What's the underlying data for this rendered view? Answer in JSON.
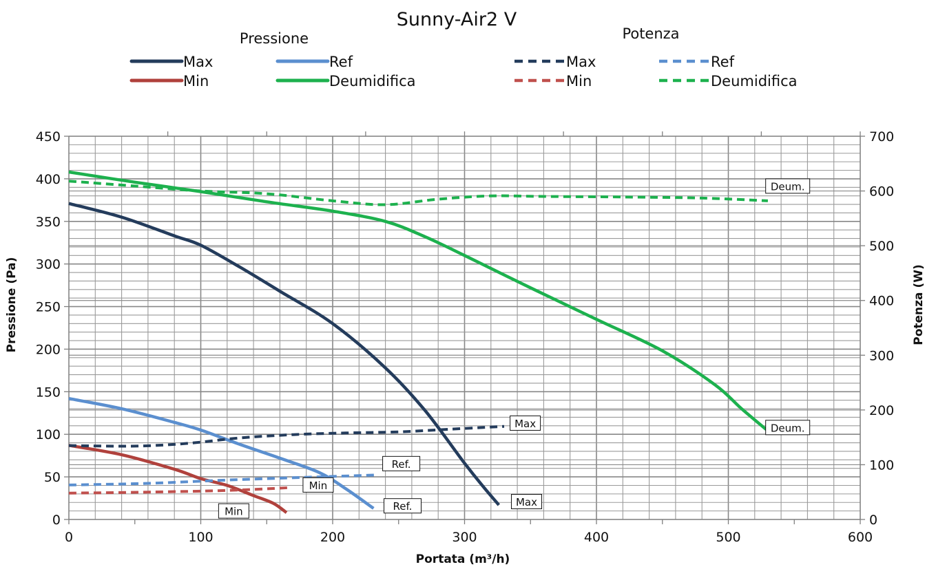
{
  "chart_data": {
    "type": "line",
    "title": "Sunny-Air2 V",
    "xlabel": "Portata (m³/h)",
    "ylabel": "Pressione (Pa)",
    "y2label": "Potenza (W)",
    "xlim": [
      0,
      600
    ],
    "ylim": [
      0,
      450
    ],
    "y2lim": [
      0,
      700
    ],
    "x_ticks": [
      "0",
      "100",
      "200",
      "300",
      "400",
      "500",
      "600"
    ],
    "y_ticks": [
      "0",
      "50",
      "100",
      "150",
      "200",
      "250",
      "300",
      "350",
      "400",
      "450"
    ],
    "y2_ticks": [
      "0",
      "100",
      "200",
      "300",
      "400",
      "500",
      "600",
      "700"
    ],
    "grid": true,
    "legend": {
      "placement": "top",
      "groups": [
        {
          "title": "Pressione",
          "entries": [
            "Max",
            "Ref",
            "Min",
            "Deumidifica"
          ]
        },
        {
          "title": "Potenza",
          "entries": [
            "Max",
            "Ref",
            "Min",
            "Deumidifica"
          ]
        }
      ]
    },
    "series": [
      {
        "name": "Max",
        "group": "Pressione",
        "axis": "left",
        "style": "solid",
        "color": "#243c5c",
        "points": [
          [
            0,
            371
          ],
          [
            40,
            355
          ],
          [
            80,
            333
          ],
          [
            100,
            322
          ],
          [
            130,
            296
          ],
          [
            160,
            268
          ],
          [
            200,
            230
          ],
          [
            240,
            178
          ],
          [
            270,
            128
          ],
          [
            300,
            66
          ],
          [
            315,
            37
          ],
          [
            326,
            17
          ]
        ]
      },
      {
        "name": "Ref",
        "group": "Pressione",
        "axis": "left",
        "style": "solid",
        "color": "#5b8fcf",
        "points": [
          [
            0,
            142
          ],
          [
            40,
            130
          ],
          [
            80,
            114
          ],
          [
            100,
            105
          ],
          [
            130,
            88
          ],
          [
            160,
            72
          ],
          [
            190,
            55
          ],
          [
            210,
            36
          ],
          [
            231,
            13
          ]
        ]
      },
      {
        "name": "Min",
        "group": "Pressione",
        "axis": "left",
        "style": "solid",
        "color": "#b0413c",
        "points": [
          [
            0,
            87
          ],
          [
            40,
            76
          ],
          [
            80,
            59
          ],
          [
            100,
            48
          ],
          [
            120,
            40
          ],
          [
            140,
            28
          ],
          [
            155,
            19
          ],
          [
            165,
            8
          ]
        ]
      },
      {
        "name": "Deumidifica",
        "group": "Pressione",
        "axis": "left",
        "style": "solid",
        "color": "#1db14e",
        "points": [
          [
            0,
            408
          ],
          [
            50,
            396
          ],
          [
            100,
            385
          ],
          [
            150,
            373
          ],
          [
            200,
            362
          ],
          [
            240,
            350
          ],
          [
            270,
            332
          ],
          [
            300,
            310
          ],
          [
            350,
            272
          ],
          [
            400,
            235
          ],
          [
            450,
            198
          ],
          [
            490,
            158
          ],
          [
            510,
            130
          ],
          [
            530,
            104
          ]
        ]
      },
      {
        "name": "Max",
        "group": "Potenza",
        "axis": "right",
        "style": "dashed",
        "color": "#243c5c",
        "points": [
          [
            0,
            135
          ],
          [
            50,
            134
          ],
          [
            90,
            139
          ],
          [
            130,
            149
          ],
          [
            170,
            155
          ],
          [
            210,
            158
          ],
          [
            250,
            160
          ],
          [
            290,
            165
          ],
          [
            330,
            170
          ]
        ]
      },
      {
        "name": "Ref",
        "group": "Potenza",
        "axis": "right",
        "style": "dashed",
        "color": "#5b8fcf",
        "points": [
          [
            0,
            63
          ],
          [
            60,
            66
          ],
          [
            120,
            72
          ],
          [
            180,
            77
          ],
          [
            232,
            81
          ]
        ]
      },
      {
        "name": "Min",
        "group": "Potenza",
        "axis": "right",
        "style": "dashed",
        "color": "#c0504d",
        "points": [
          [
            0,
            48
          ],
          [
            60,
            50
          ],
          [
            120,
            53
          ],
          [
            167,
            58
          ]
        ]
      },
      {
        "name": "Deumidifica",
        "group": "Potenza",
        "axis": "right",
        "style": "dashed",
        "color": "#1db14e",
        "points": [
          [
            0,
            618
          ],
          [
            50,
            609
          ],
          [
            100,
            600
          ],
          [
            150,
            595
          ],
          [
            200,
            582
          ],
          [
            240,
            575
          ],
          [
            280,
            585
          ],
          [
            320,
            591
          ],
          [
            360,
            590
          ],
          [
            420,
            589
          ],
          [
            480,
            587
          ],
          [
            530,
            582
          ]
        ]
      }
    ],
    "annotations": [
      {
        "text": "Deum.",
        "x": 545,
        "y": 609,
        "axis": "right"
      },
      {
        "text": "Max",
        "x": 346,
        "y": 176,
        "axis": "right"
      },
      {
        "text": "Ref.",
        "x": 252,
        "y": 102,
        "axis": "right"
      },
      {
        "text": "Min",
        "x": 189,
        "y": 63,
        "axis": "right"
      },
      {
        "text": "Deum.",
        "x": 545,
        "y": 108,
        "axis": "left"
      },
      {
        "text": "Max",
        "x": 347,
        "y": 21,
        "axis": "left"
      },
      {
        "text": "Ref.",
        "x": 253,
        "y": 16,
        "axis": "left"
      },
      {
        "text": "Min",
        "x": 125,
        "y": 10,
        "axis": "left"
      }
    ]
  }
}
